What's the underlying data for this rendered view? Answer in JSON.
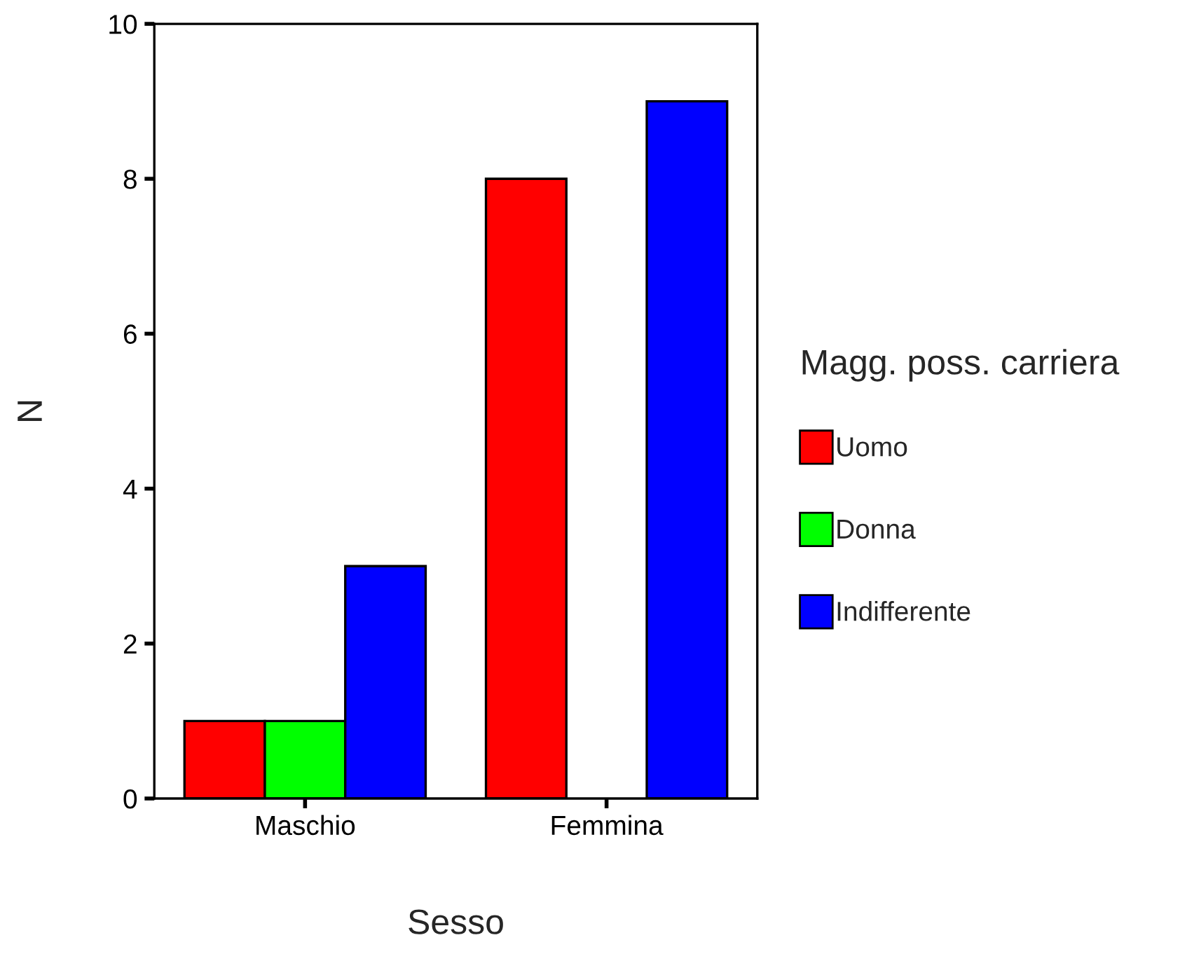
{
  "chart_data": {
    "type": "bar",
    "xlabel": "Sesso",
    "ylabel": "N",
    "legend_title": "Magg. poss. carriera",
    "categories": [
      "Maschio",
      "Femmina"
    ],
    "series": [
      {
        "name": "Uomo",
        "color": "#ff0000",
        "values": [
          1,
          8
        ]
      },
      {
        "name": "Donna",
        "color": "#00ff00",
        "values": [
          1,
          null
        ]
      },
      {
        "name": "Indifferente",
        "color": "#0000ff",
        "values": [
          3,
          9
        ]
      }
    ],
    "ylim": [
      0,
      10
    ],
    "yticks": [
      0,
      2,
      4,
      6,
      8,
      10
    ],
    "grid": false,
    "legend": "right"
  }
}
